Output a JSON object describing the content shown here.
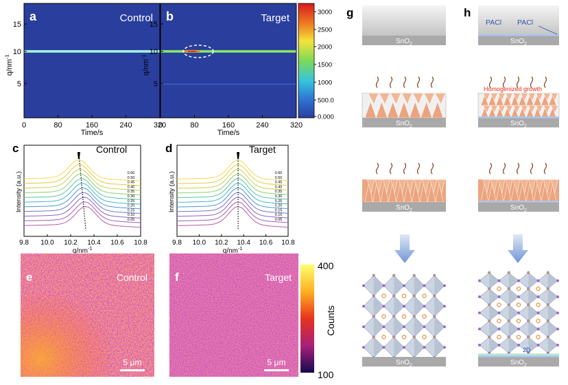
{
  "a": {
    "label": "a",
    "title": "Control",
    "y_axis": {
      "text": "q/nm",
      "sup": "-1"
    },
    "x_axis": "Time/s",
    "xticks": [
      "0",
      "80",
      "160",
      "240",
      "320"
    ],
    "yticks": [
      "5",
      "10",
      "15"
    ]
  },
  "b": {
    "label": "b",
    "title": "Target",
    "y_axis": {
      "text": "q/nm",
      "sup": "-1"
    },
    "x_axis": "Time/s",
    "xticks": [
      "0",
      "80",
      "160",
      "240",
      "320"
    ],
    "yticks": [
      "5",
      "10",
      "15"
    ],
    "colorbar_ticks": [
      "3000",
      "2500",
      "2000",
      "1500",
      "1000",
      "500.0",
      "0.000"
    ]
  },
  "c": {
    "label": "c",
    "title": "Control",
    "y_axis": "Intensity (a.u.)",
    "x_axis": {
      "text": "q/nm",
      "sup": "-1"
    },
    "xticks": [
      "9.8",
      "10.0",
      "10.2",
      "10.4",
      "10.6",
      "10.8"
    ],
    "curve_labels": [
      "0.60",
      "0.50",
      "0.45",
      "0.40",
      "0.35",
      "0.30",
      "0.25",
      "0.20",
      "0.15",
      "0.10",
      "0.05"
    ]
  },
  "d": {
    "label": "d",
    "title": "Target",
    "y_axis": "Intensity (a.u.)",
    "x_axis": {
      "text": "q/nm",
      "sup": "-1"
    },
    "xticks": [
      "9.8",
      "10.0",
      "10.2",
      "10.4",
      "10.6",
      "10.8"
    ],
    "curve_labels": [
      "0.60",
      "0.50",
      "0.45",
      "0.40",
      "0.35",
      "0.30",
      "0.25",
      "0.20",
      "0.15",
      "0.10",
      "0.05"
    ]
  },
  "e": {
    "label": "e",
    "title": "Control",
    "scale_bar": "5 μm"
  },
  "f": {
    "label": "f",
    "title": "Target",
    "scale_bar": "5 μm",
    "colorbar": {
      "max": "400",
      "min": "100",
      "label": "Counts"
    }
  },
  "g": {
    "label": "g",
    "substrates": [
      {
        "text": "SnO",
        "sub": "2"
      },
      {
        "text": "SnO",
        "sub": "2"
      },
      {
        "text": "SnO",
        "sub": "2"
      },
      {
        "text": "SnO",
        "sub": "2"
      }
    ]
  },
  "h": {
    "label": "h",
    "pacl": [
      "PACl",
      "PACl"
    ],
    "annotation": "Homogenized growth",
    "substrates": [
      {
        "text": "SnO",
        "sub": "2"
      },
      {
        "text": "SnO",
        "sub": "2"
      },
      {
        "text": "SnO",
        "sub": "2"
      },
      {
        "text": "SnO",
        "sub": "2"
      }
    ],
    "layer_2d": "2D"
  }
}
